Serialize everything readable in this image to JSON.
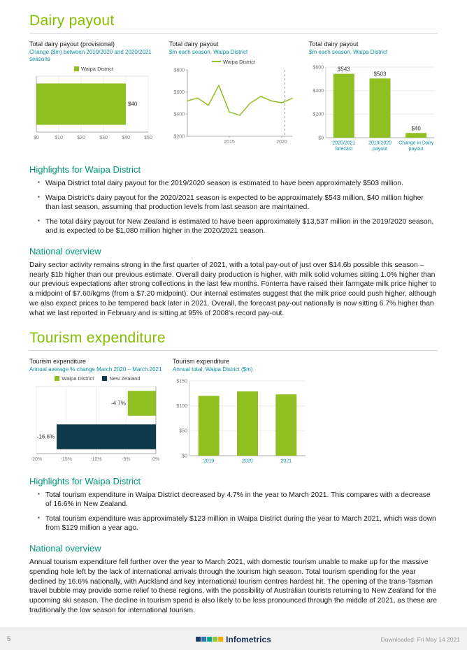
{
  "colors": {
    "accent_green": "#84bd00",
    "heading_teal": "#009a7b",
    "chart_green": "#8fbf21",
    "chart_dark_teal": "#0e3a4c",
    "subtitle_teal": "#0e8fa3",
    "brand_navy": "#1b365d"
  },
  "dairy": {
    "title": "Dairy payout",
    "highlights_heading": "Highlights for Waipa District",
    "highlights": [
      "Waipa District total dairy payout for the 2019/2020 season is estimated to have been approximately $503 million.",
      "Waipa District's dairy payout for the 2020/2021 season is expected to be approximately $543 million, $40 million higher than last season, assuming that production levels from last season are maintained.",
      "The total dairy payout for New Zealand is estimated to have been approximately $13,537 million in the 2019/2020 season, and is expected to be $1,080 million higher in the 2020/2021 season."
    ],
    "national_heading": "National overview",
    "national_text": "Dairy sector activity remains strong in the first quarter of 2021, with a total pay-out of just over $14.6b possible this season – nearly $1b higher than our previous estimate. Overall dairy production is higher, with milk solid volumes sitting 1.0% higher than our previous expectations after strong collections in the last few months. Fonterra have raised their farmgate milk price higher to a midpoint of $7.60/kgms (from a $7.20 midpoint). Our internal estimates suggest that the milk price could push higher, although we also expect prices to be tempered back later in 2021. Overall, the forecast pay-out nationally is now sitting 6.7% higher than what we last reported in February and is sitting at 95% of 2008's record pay-out."
  },
  "tourism": {
    "title": "Tourism expenditure",
    "highlights_heading": "Highlights for Waipa District",
    "highlights": [
      "Total tourism expenditure in Waipa District decreased by 4.7% in the year to March 2021. This compares with a decrease of 16.6% in New Zealand.",
      "Total tourism expenditure was approximately $123 million in Waipa District during the year to March 2021, which was down from $129 million a year ago."
    ],
    "national_heading": "National overview",
    "national_text": "Annual tourism expenditure fell further over the year to March 2021, with domestic tourism unable to make up for the massive spending hole left by the lack of international arrivals through the tourism high season. Total tourism spending for the year declined by 16.6% nationally, with Auckland and key international tourism centres hardest hit. The opening of the trans-Tasman travel bubble may provide some relief to these regions, with the possibility of Australian tourists returning to New Zealand for the upcoming ski season. The decline in tourism spend is also likely to be less pronounced through the middle of 2021, as these are traditionally the low season for international tourism."
  },
  "chart_data": [
    {
      "id": "dairy-change",
      "type": "bar",
      "orientation": "horizontal",
      "title": "Total dairy payout (provisional)",
      "subtitle": "Change ($m) between 2019/2020 and 2020/2021 seasons",
      "legend": [
        {
          "label": "Waipa District",
          "color": "#8fbf21"
        }
      ],
      "categories": [
        "Waipa District"
      ],
      "values": [
        40
      ],
      "value_labels": [
        "$40"
      ],
      "bar_colors": [
        "#8fbf21"
      ],
      "xlim": [
        0,
        50
      ],
      "xticks": [
        "$0",
        "$10",
        "$20",
        "$30",
        "$40",
        "$50"
      ],
      "xtick_values": [
        0,
        10,
        20,
        30,
        40,
        50
      ]
    },
    {
      "id": "dairy-history",
      "type": "line",
      "title": "Total dairy payout",
      "subtitle": "$m each season, Waipa District",
      "legend": [
        {
          "label": "Waipa District",
          "color": "#8fbf21"
        }
      ],
      "x": [
        2011,
        2012,
        2013,
        2014,
        2015,
        2016,
        2017,
        2018,
        2019,
        2020,
        2021
      ],
      "values": [
        520,
        545,
        480,
        660,
        420,
        390,
        500,
        560,
        520,
        503,
        543
      ],
      "line_color": "#8fbf21",
      "ylim": [
        200,
        800
      ],
      "yticks": [
        "$200",
        "$400",
        "$600",
        "$800"
      ],
      "ytick_values": [
        200,
        400,
        600,
        800
      ],
      "xticks": [
        "2015",
        "2020"
      ],
      "xtick_values": [
        2015,
        2020
      ],
      "forecast_x": 2020.3
    },
    {
      "id": "dairy-compare",
      "type": "bar",
      "orientation": "vertical",
      "title": "Total dairy payout",
      "subtitle": "$m each season, Waipa District",
      "categories": [
        "2020/2021 forecast",
        "2019/2020 payout",
        "Change in Dairy payout"
      ],
      "categories_lines": [
        [
          "2020/2021",
          "forecast"
        ],
        [
          "2019/2020",
          "payout"
        ],
        [
          "Change in Dairy",
          "payout"
        ]
      ],
      "values": [
        543,
        503,
        40
      ],
      "value_labels": [
        "$543",
        "$503",
        "$40"
      ],
      "bar_color": "#8fbf21",
      "ylim": [
        0,
        600
      ],
      "yticks": [
        "$0",
        "$200",
        "$400",
        "$600"
      ],
      "ytick_values": [
        0,
        200,
        400,
        600
      ]
    },
    {
      "id": "tourism-change",
      "type": "bar",
      "orientation": "horizontal",
      "title": "Tourism expenditure",
      "subtitle": "Annual average % change March 2020 – March 2021",
      "legend": [
        {
          "label": "Waipa District",
          "color": "#8fbf21"
        },
        {
          "label": "New Zealand",
          "color": "#0e3a4c"
        }
      ],
      "categories": [
        "Waipa District",
        "New Zealand"
      ],
      "values": [
        -4.7,
        -16.6
      ],
      "value_labels": [
        "-4.7%",
        "-16.6%"
      ],
      "bar_colors": [
        "#8fbf21",
        "#0e3a4c"
      ],
      "xlim": [
        -20,
        0
      ],
      "xticks": [
        "-20%",
        "-15%",
        "-10%",
        "-5%",
        "0%"
      ],
      "xtick_values": [
        -20,
        -15,
        -10,
        -5,
        0
      ]
    },
    {
      "id": "tourism-history",
      "type": "bar",
      "orientation": "vertical",
      "title": "Tourism expenditure",
      "subtitle": "Annual total, Waipa District ($m)",
      "categories": [
        "2019",
        "2020",
        "2021"
      ],
      "categories_lines": [
        [
          "2019"
        ],
        [
          "2020"
        ],
        [
          "2021"
        ]
      ],
      "values": [
        120,
        129,
        123
      ],
      "bar_color": "#8fbf21",
      "ylim": [
        0,
        150
      ],
      "yticks": [
        "$0",
        "$50",
        "$100",
        "$150"
      ],
      "ytick_values": [
        0,
        50,
        100,
        150
      ]
    }
  ],
  "footer": {
    "page_number": "5",
    "brand": "Infometrics",
    "downloaded": "Downloaded: Fri May 14 2021",
    "logo_colors": [
      "#1f3864",
      "#2e74b5",
      "#00a88f",
      "#8dc63f",
      "#f2a900"
    ]
  }
}
